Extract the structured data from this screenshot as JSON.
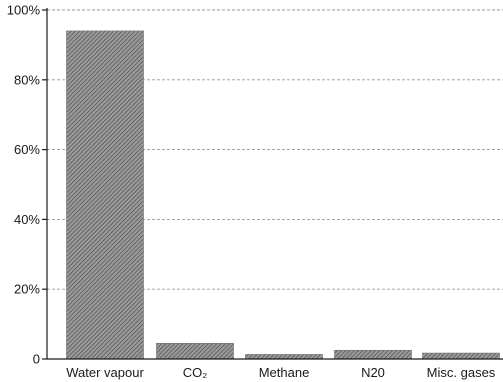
{
  "chart_data": {
    "type": "bar",
    "title": "",
    "xlabel": "",
    "ylabel": "",
    "categories": [
      "Water vapour",
      "CO₂",
      "Methane",
      "N20",
      "Misc. gases"
    ],
    "values": [
      94,
      4.5,
      1.3,
      2.5,
      1.7
    ],
    "ylim": [
      0,
      100
    ],
    "yticks": [
      0,
      20,
      40,
      60,
      80,
      100
    ],
    "ytick_labels": [
      "0",
      "20%",
      "40%",
      "60%",
      "80%",
      "100%"
    ],
    "grid": true,
    "grid_style": "dashed horizontal",
    "bar_fill": "hatched",
    "colors": {
      "bar": "#8a8a8a",
      "hatch": "#4d4d4d",
      "axis": "#1a1a1a",
      "grid": "#9a9a9a"
    }
  }
}
